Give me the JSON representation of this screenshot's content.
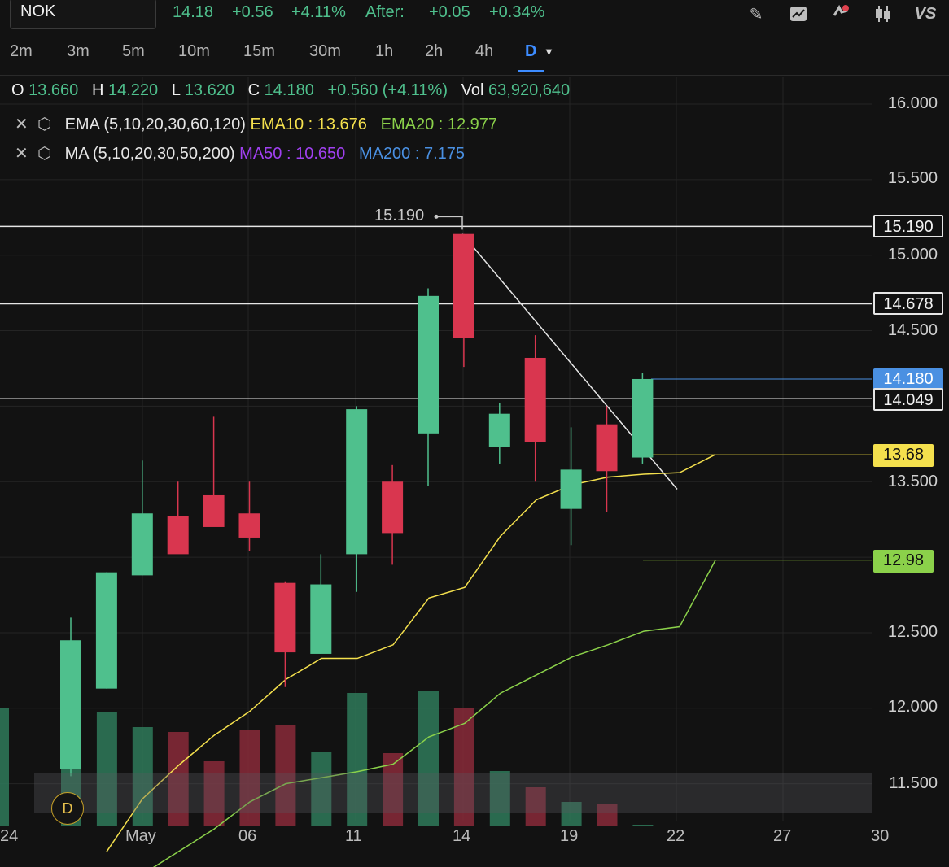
{
  "header": {
    "symbol": "NOK",
    "price": "14.18",
    "change": "+0.56",
    "change_pct": "+4.11%",
    "after_label": "After:",
    "after_change": "+0.05",
    "after_pct": "+0.34%",
    "icons": [
      "pencil-icon",
      "chart-icon",
      "alert-icon",
      "candles-icon",
      "compare-vs-icon"
    ]
  },
  "timeframes": [
    "2m",
    "3m",
    "5m",
    "10m",
    "15m",
    "30m",
    "1h",
    "2h",
    "4h",
    "D"
  ],
  "selected_timeframe": "D",
  "ohlc": {
    "o_label": "O",
    "o": "13.660",
    "h_label": "H",
    "h": "14.220",
    "l_label": "L",
    "l": "13.620",
    "c_label": "C",
    "c": "14.180",
    "chg": "+0.560 (+4.11%)",
    "vol_label": "Vol",
    "vol": "63,920,640"
  },
  "indicators": {
    "ema": {
      "name": "EMA (5,10,20,30,60,120)",
      "v1": "EMA10 : 13.676",
      "v2": "EMA20 : 12.977"
    },
    "ma": {
      "name": "MA (5,10,20,30,50,200)",
      "v1": "MA50 : 10.650",
      "v2": "MA200 : 7.175"
    }
  },
  "colors": {
    "up": "#4fc08d",
    "down": "#d9364f",
    "ema10": "#f4e04d",
    "ema20": "#8bd14a",
    "ma50": "#a040f0",
    "ma200": "#4a90e2"
  },
  "price_axis": [
    "16.000",
    "15.500",
    "15.000",
    "14.500",
    "13.500",
    "12.500",
    "12.000",
    "11.500"
  ],
  "price_badges": {
    "resist1": "15.190",
    "resist2": "14.678",
    "last": "14.180",
    "support": "14.049",
    "ema10": "13.68",
    "ema20": "12.98"
  },
  "high_annotation": "15.190",
  "x_axis": [
    "24",
    "May",
    "06",
    "11",
    "14",
    "19",
    "22",
    "27",
    "30"
  ],
  "corner_badge": "D",
  "candles": [
    {
      "o": 11.6,
      "h": 12.6,
      "l": 11.55,
      "c": 12.45
    },
    {
      "o": 12.13,
      "h": 12.9,
      "l": 12.13,
      "c": 12.9
    },
    {
      "o": 12.88,
      "h": 13.64,
      "l": 12.88,
      "c": 13.29
    },
    {
      "o": 13.27,
      "h": 13.5,
      "l": 13.03,
      "c": 13.02
    },
    {
      "o": 13.41,
      "h": 13.93,
      "l": 13.23,
      "c": 13.2
    },
    {
      "o": 13.29,
      "h": 13.5,
      "l": 13.04,
      "c": 13.13
    },
    {
      "o": 12.83,
      "h": 12.84,
      "l": 12.14,
      "c": 12.37
    },
    {
      "o": 12.36,
      "h": 13.02,
      "l": 12.36,
      "c": 12.82
    },
    {
      "o": 13.02,
      "h": 14.0,
      "l": 12.77,
      "c": 13.98
    },
    {
      "o": 13.5,
      "h": 13.61,
      "l": 12.95,
      "c": 13.16
    },
    {
      "o": 13.82,
      "h": 14.78,
      "l": 13.47,
      "c": 14.73
    },
    {
      "o": 15.14,
      "h": 15.14,
      "l": 14.26,
      "c": 14.45
    },
    {
      "o": 13.73,
      "h": 14.02,
      "l": 13.62,
      "c": 13.95
    },
    {
      "o": 14.32,
      "h": 14.47,
      "l": 13.5,
      "c": 13.76
    },
    {
      "o": 13.32,
      "h": 13.86,
      "l": 13.08,
      "c": 13.58
    },
    {
      "o": 13.88,
      "h": 14.0,
      "l": 13.3,
      "c": 13.57
    },
    {
      "o": 13.66,
      "h": 14.22,
      "l": 13.62,
      "c": 14.18
    }
  ],
  "volumes": [
    {
      "v": 0.58,
      "up": true
    },
    {
      "v": 0.7,
      "up": true
    },
    {
      "v": 0.61,
      "up": true
    },
    {
      "v": 0.58,
      "up": false
    },
    {
      "v": 0.4,
      "up": false
    },
    {
      "v": 0.59,
      "up": false
    },
    {
      "v": 0.62,
      "up": false
    },
    {
      "v": 0.46,
      "up": true
    },
    {
      "v": 0.82,
      "up": true
    },
    {
      "v": 0.45,
      "up": false
    },
    {
      "v": 0.83,
      "up": true
    },
    {
      "v": 0.73,
      "up": false
    },
    {
      "v": 0.34,
      "up": true
    },
    {
      "v": 0.24,
      "up": false
    },
    {
      "v": 0.15,
      "up": true
    },
    {
      "v": 0.14,
      "up": false
    },
    {
      "v": 0.01,
      "up": true
    }
  ],
  "ema10_line": [
    11.05,
    11.4,
    11.62,
    11.82,
    11.98,
    12.19,
    12.33,
    12.33,
    12.42,
    12.73,
    12.8,
    13.14,
    13.38,
    13.48,
    13.53,
    13.55,
    13.56,
    13.68
  ],
  "ema20_line": [
    10.7,
    10.9,
    11.05,
    11.2,
    11.38,
    11.5,
    11.54,
    11.58,
    11.63,
    11.81,
    11.9,
    12.1,
    12.22,
    12.34,
    12.42,
    12.51,
    12.54,
    12.98
  ]
}
